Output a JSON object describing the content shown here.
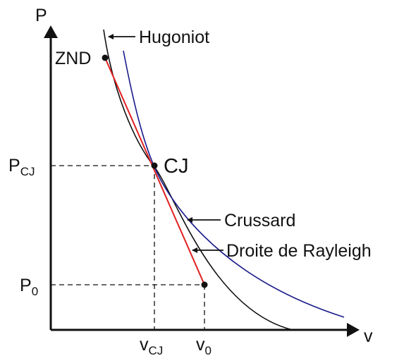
{
  "axes": {
    "y_label": "P",
    "x_label": "v"
  },
  "points": {
    "znd": "ZND",
    "cj": "CJ"
  },
  "curves": {
    "hugoniot": "Hugoniot",
    "crussard": "Crussard",
    "rayleigh": "Droite de Rayleigh"
  },
  "pressure_labels": [
    {
      "main": "P",
      "sub": "CJ"
    },
    {
      "main": "P",
      "sub": "0"
    }
  ],
  "volume_labels": [
    {
      "main": "v",
      "sub": "CJ"
    },
    {
      "main": "v",
      "sub": "0"
    }
  ]
}
